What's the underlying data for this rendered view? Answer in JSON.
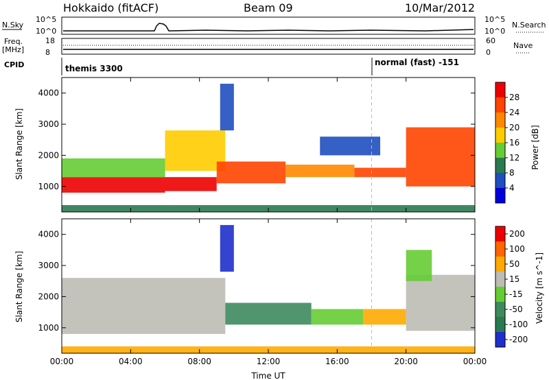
{
  "header": {
    "station": "Hokkaido (fitACF)",
    "beam": "Beam 09",
    "date": "10/Mar/2012"
  },
  "top_panels": {
    "nsky_label": "N.Sky",
    "nsearch_label": "N.Search",
    "freq_label_1": "Freq.",
    "freq_label_2": "[MHz]",
    "nave_label": "Nave",
    "cpid_label": "CPID",
    "nsky_ticks": [
      "10^5",
      "10^0"
    ],
    "nsearch_ticks": [
      "10^5",
      "10^0"
    ],
    "freq_ticks": [
      "18",
      "8"
    ],
    "nave_ticks": [
      "60",
      "0"
    ],
    "cpid_segments": [
      {
        "label": "themis 3300",
        "start_hour": 0,
        "end_hour": 18
      },
      {
        "label": "normal (fast) -151",
        "start_hour": 18,
        "end_hour": 24
      }
    ]
  },
  "chart_data": [
    {
      "type": "heatmap",
      "title": "Power",
      "xlabel": "Time UT",
      "ylabel": "Slant Range [km]",
      "x_ticks": [
        "00:00",
        "04:00",
        "08:00",
        "12:00",
        "16:00",
        "20:00",
        "00:00"
      ],
      "xlim": [
        0,
        24
      ],
      "ylim": [
        180,
        4500
      ],
      "y_ticks": [
        "1000",
        "2000",
        "3000",
        "4000"
      ],
      "colorbar": {
        "label": "Power [dB]",
        "ticks": [
          "28",
          "24",
          "20",
          "16",
          "12",
          "8",
          "4"
        ],
        "colors": [
          "#0000dd",
          "#1f4fbf",
          "#2a7a50",
          "#66cc33",
          "#ffcc00",
          "#ff8800",
          "#ff4400",
          "#ee0000"
        ]
      },
      "regions": [
        {
          "x": [
            0.0,
            6.0
          ],
          "y": [
            800,
            1300
          ],
          "level": 7
        },
        {
          "x": [
            0.0,
            6.0
          ],
          "y": [
            1300,
            1900
          ],
          "level": 3
        },
        {
          "x": [
            6.0,
            9.0
          ],
          "y": [
            850,
            1300
          ],
          "level": 7
        },
        {
          "x": [
            6.0,
            9.5
          ],
          "y": [
            1500,
            2800
          ],
          "level": 4
        },
        {
          "x": [
            9.0,
            13.0
          ],
          "y": [
            1100,
            1800
          ],
          "level": 6
        },
        {
          "x": [
            13.0,
            17.0
          ],
          "y": [
            1300,
            1700
          ],
          "level": 5
        },
        {
          "x": [
            17.0,
            20.0
          ],
          "y": [
            1300,
            1600
          ],
          "level": 6
        },
        {
          "x": [
            20.0,
            24.0
          ],
          "y": [
            1000,
            2900
          ],
          "level": 6
        },
        {
          "x": [
            15.0,
            18.5
          ],
          "y": [
            2000,
            2600
          ],
          "level": 1
        },
        {
          "x": [
            9.2,
            10.0
          ],
          "y": [
            2800,
            4300
          ],
          "level": 1
        },
        {
          "x": [
            0.0,
            24.0
          ],
          "y": [
            180,
            400
          ],
          "level": 2
        }
      ]
    },
    {
      "type": "heatmap",
      "title": "Velocity",
      "xlabel": "Time UT",
      "ylabel": "Slant Range [km]",
      "x_ticks": [
        "00:00",
        "04:00",
        "08:00",
        "12:00",
        "16:00",
        "20:00",
        "00:00"
      ],
      "xlim": [
        0,
        24
      ],
      "ylim": [
        180,
        4500
      ],
      "y_ticks": [
        "1000",
        "2000",
        "3000",
        "4000"
      ],
      "colorbar": {
        "label": "Velocity [m s^-1]",
        "ticks": [
          "200",
          "100",
          "50",
          "15",
          "-15",
          "-50",
          "-100",
          "-200"
        ],
        "colors": [
          "#1f2fcc",
          "#2a7a50",
          "#3e8a5e",
          "#66cc33",
          "#bdbdb5",
          "#ffaa00",
          "#ff6600",
          "#ee0000"
        ]
      },
      "regions": [
        {
          "x": [
            0.0,
            9.5
          ],
          "y": [
            800,
            2600
          ],
          "level": 4
        },
        {
          "x": [
            9.5,
            14.5
          ],
          "y": [
            1100,
            1800
          ],
          "level": 2
        },
        {
          "x": [
            14.5,
            17.5
          ],
          "y": [
            1100,
            1600
          ],
          "level": 3
        },
        {
          "x": [
            17.5,
            20.0
          ],
          "y": [
            1100,
            1600
          ],
          "level": 5
        },
        {
          "x": [
            20.0,
            24.0
          ],
          "y": [
            900,
            2700
          ],
          "level": 4
        },
        {
          "x": [
            20.0,
            21.5
          ],
          "y": [
            2500,
            3500
          ],
          "level": 3
        },
        {
          "x": [
            9.2,
            10.0
          ],
          "y": [
            2800,
            4300
          ],
          "level": 0
        },
        {
          "x": [
            0.0,
            24.0
          ],
          "y": [
            180,
            400
          ],
          "level": 5
        }
      ]
    }
  ]
}
